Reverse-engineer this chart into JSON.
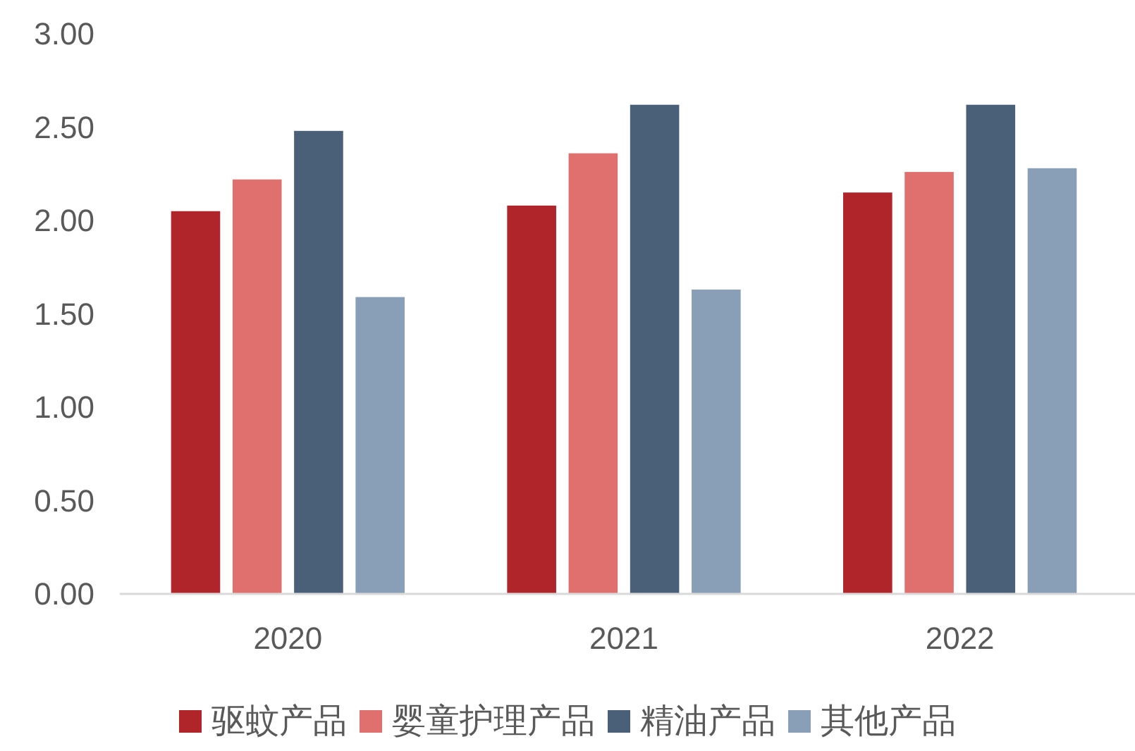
{
  "chart_data": {
    "type": "bar",
    "categories": [
      "2020",
      "2021",
      "2022"
    ],
    "series": [
      {
        "name": "驱蚊产品",
        "color": "#b0252a",
        "values": [
          2.05,
          2.08,
          2.15
        ]
      },
      {
        "name": "婴童护理产品",
        "color": "#e0706e",
        "values": [
          2.22,
          2.36,
          2.26
        ]
      },
      {
        "name": "精油产品",
        "color": "#4a6079",
        "values": [
          2.48,
          2.62,
          2.62
        ]
      },
      {
        "name": "其他产品",
        "color": "#889fb7",
        "values": [
          1.59,
          1.63,
          2.28
        ]
      }
    ],
    "ylim": [
      0,
      3
    ],
    "yticks": [
      {
        "value": 0,
        "label": "0.00"
      },
      {
        "value": 0.5,
        "label": "0.50"
      },
      {
        "value": 1,
        "label": "1.00"
      },
      {
        "value": 1.5,
        "label": "1.50"
      },
      {
        "value": 2,
        "label": "2.00"
      },
      {
        "value": 2.5,
        "label": "2.50"
      },
      {
        "value": 3,
        "label": "3.00"
      }
    ],
    "grid": false,
    "legend": "bottom"
  }
}
